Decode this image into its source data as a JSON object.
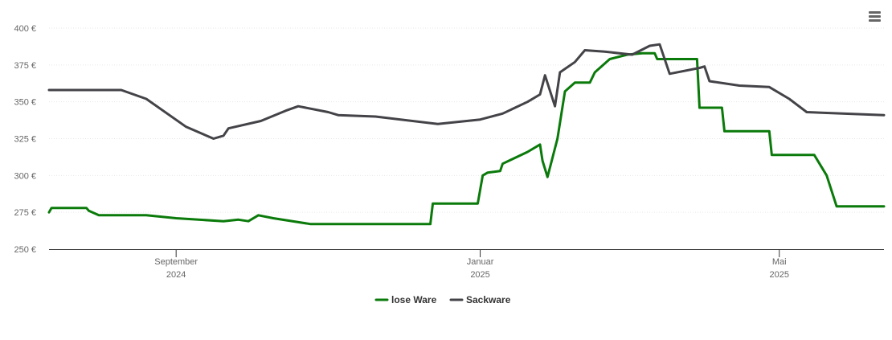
{
  "colors": {
    "lose_ware": "#0a7a0a",
    "sackware": "#434348",
    "grid": "#e6e6e6",
    "axis": "#333333",
    "text": "#666666"
  },
  "menu": {
    "icon": "hamburger-menu-icon"
  },
  "chart_data": {
    "type": "line",
    "title": "",
    "xlabel": "",
    "ylabel": "",
    "ylim": [
      250,
      400
    ],
    "y_ticks": [
      "250 €",
      "275 €",
      "300 €",
      "325 €",
      "350 €",
      "375 €",
      "400 €"
    ],
    "y_tick_values": [
      250,
      275,
      300,
      325,
      350,
      375,
      400
    ],
    "xlim": [
      "2024-07-12",
      "2025-06-12"
    ],
    "x_ticks": [
      {
        "date": "2024-09-01",
        "month": "September",
        "year": "2024"
      },
      {
        "date": "2025-01-01",
        "month": "Januar",
        "year": "2025"
      },
      {
        "date": "2025-05-01",
        "month": "Mai",
        "year": "2025"
      }
    ],
    "grid": true,
    "legend": "bottom-center",
    "series": [
      {
        "name": "lose Ware",
        "color": "#0a7a0a",
        "points": [
          [
            "2024-07-12",
            275
          ],
          [
            "2024-07-13",
            278
          ],
          [
            "2024-07-27",
            278
          ],
          [
            "2024-07-28",
            276
          ],
          [
            "2024-08-01",
            273
          ],
          [
            "2024-08-20",
            273
          ],
          [
            "2024-09-01",
            271
          ],
          [
            "2024-09-20",
            269
          ],
          [
            "2024-09-26",
            270
          ],
          [
            "2024-09-30",
            269
          ],
          [
            "2024-10-04",
            273
          ],
          [
            "2024-10-10",
            271
          ],
          [
            "2024-10-25",
            267
          ],
          [
            "2024-11-20",
            267
          ],
          [
            "2024-12-12",
            267
          ],
          [
            "2024-12-13",
            281
          ],
          [
            "2024-12-31",
            281
          ],
          [
            "2025-01-02",
            300
          ],
          [
            "2025-01-04",
            302
          ],
          [
            "2025-01-09",
            303
          ],
          [
            "2025-01-10",
            308
          ],
          [
            "2025-01-20",
            316
          ],
          [
            "2025-01-25",
            321
          ],
          [
            "2025-01-26",
            310
          ],
          [
            "2025-01-28",
            299
          ],
          [
            "2025-02-01",
            325
          ],
          [
            "2025-02-04",
            357
          ],
          [
            "2025-02-08",
            363
          ],
          [
            "2025-02-14",
            363
          ],
          [
            "2025-02-16",
            370
          ],
          [
            "2025-02-22",
            379
          ],
          [
            "2025-03-01",
            382
          ],
          [
            "2025-03-07",
            383
          ],
          [
            "2025-03-12",
            383
          ],
          [
            "2025-03-13",
            379
          ],
          [
            "2025-03-29",
            379
          ],
          [
            "2025-03-30",
            346
          ],
          [
            "2025-04-08",
            346
          ],
          [
            "2025-04-09",
            330
          ],
          [
            "2025-04-27",
            330
          ],
          [
            "2025-04-28",
            314
          ],
          [
            "2025-05-15",
            314
          ],
          [
            "2025-05-20",
            300
          ],
          [
            "2025-05-24",
            279
          ],
          [
            "2025-06-12",
            279
          ]
        ]
      },
      {
        "name": "Sackware",
        "color": "#434348",
        "points": [
          [
            "2024-07-12",
            358
          ],
          [
            "2024-08-10",
            358
          ],
          [
            "2024-08-20",
            352
          ],
          [
            "2024-09-05",
            333
          ],
          [
            "2024-09-16",
            325
          ],
          [
            "2024-09-20",
            327
          ],
          [
            "2024-09-22",
            332
          ],
          [
            "2024-10-05",
            337
          ],
          [
            "2024-10-15",
            344
          ],
          [
            "2024-10-20",
            347
          ],
          [
            "2024-11-01",
            343
          ],
          [
            "2024-11-05",
            341
          ],
          [
            "2024-11-20",
            340
          ],
          [
            "2024-12-15",
            335
          ],
          [
            "2025-01-01",
            338
          ],
          [
            "2025-01-10",
            342
          ],
          [
            "2025-01-20",
            350
          ],
          [
            "2025-01-25",
            355
          ],
          [
            "2025-01-27",
            368
          ],
          [
            "2025-01-31",
            347
          ],
          [
            "2025-02-02",
            370
          ],
          [
            "2025-02-08",
            377
          ],
          [
            "2025-02-12",
            385
          ],
          [
            "2025-02-20",
            384
          ],
          [
            "2025-03-03",
            382
          ],
          [
            "2025-03-10",
            388
          ],
          [
            "2025-03-14",
            389
          ],
          [
            "2025-03-18",
            369
          ],
          [
            "2025-03-30",
            373
          ],
          [
            "2025-04-01",
            374
          ],
          [
            "2025-04-03",
            364
          ],
          [
            "2025-04-15",
            361
          ],
          [
            "2025-04-27",
            360
          ],
          [
            "2025-05-05",
            352
          ],
          [
            "2025-05-12",
            343
          ],
          [
            "2025-06-12",
            341
          ]
        ]
      }
    ]
  }
}
